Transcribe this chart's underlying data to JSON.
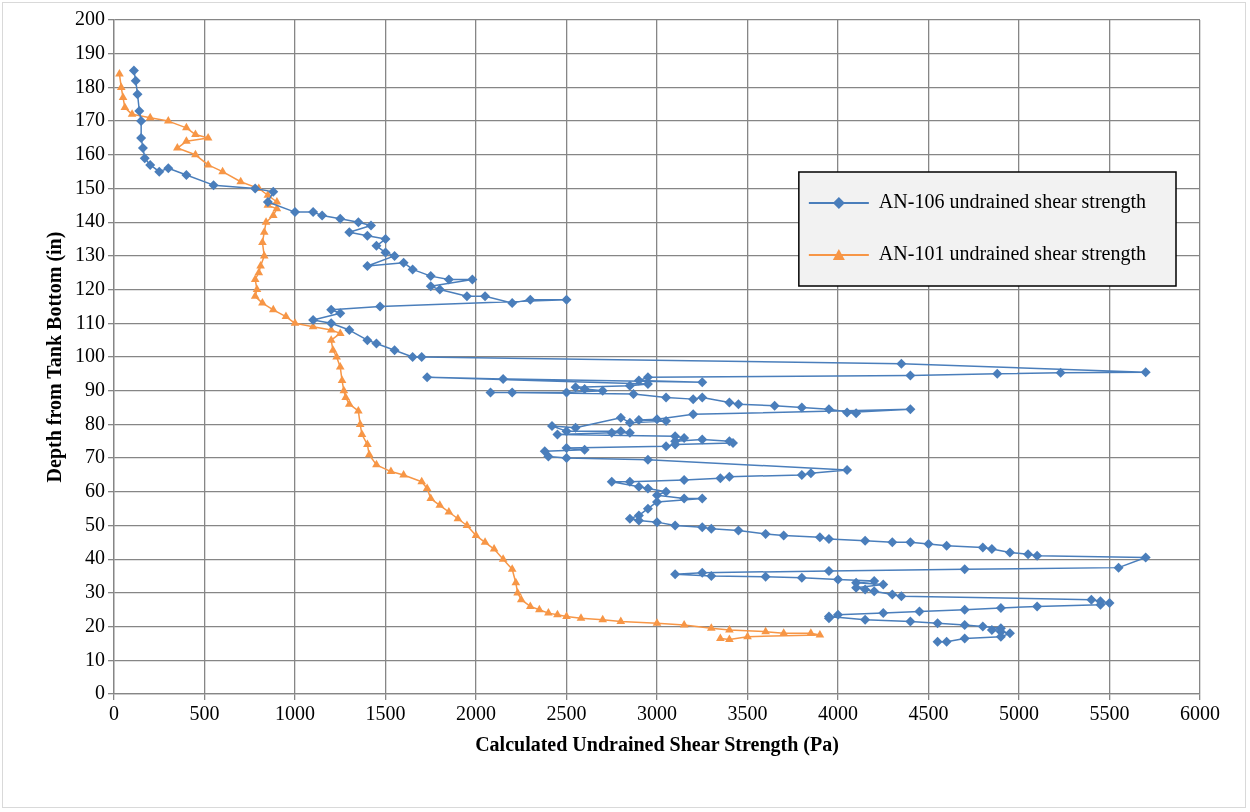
{
  "chart_data": {
    "type": "line",
    "xlabel": "Calculated Undrained Shear Strength (Pa)",
    "ylabel": "Depth from Tank Bottom (in)",
    "xlim": [
      0,
      6000
    ],
    "xticks": [
      0,
      500,
      1000,
      1500,
      2000,
      2500,
      3000,
      3500,
      4000,
      4500,
      5000,
      5500,
      6000
    ],
    "ylim": [
      0,
      200
    ],
    "yticks": [
      0,
      10,
      20,
      30,
      40,
      50,
      60,
      70,
      80,
      90,
      100,
      110,
      120,
      130,
      140,
      150,
      160,
      170,
      180,
      190,
      200
    ],
    "grid": true,
    "legend": "top right",
    "line_style": "solid",
    "series": [
      {
        "name": "AN-106 undrained shear strength",
        "color": "#4a7ebb",
        "marker": "diamond",
        "x": [
          110,
          120,
          130,
          140,
          150,
          150,
          160,
          170,
          200,
          250,
          300,
          400,
          550,
          780,
          880,
          850,
          1000,
          1100,
          1150,
          1250,
          1350,
          1420,
          1300,
          1400,
          1500,
          1450,
          1500,
          1550,
          1400,
          1600,
          1650,
          1750,
          1850,
          1980,
          1750,
          1800,
          1950,
          2050,
          2200,
          2300,
          2500,
          1470,
          1200,
          1250,
          1100,
          1200,
          1300,
          1400,
          1450,
          1550,
          1650,
          1700,
          4350,
          5700,
          5230,
          4880,
          4400,
          2950,
          2900,
          3250,
          2150,
          1730,
          2950,
          2850,
          2550,
          2600,
          2700,
          2500,
          2200,
          2080,
          2870,
          3050,
          3200,
          3250,
          3400,
          3450,
          3650,
          3800,
          3950,
          4100,
          4050,
          4400,
          3200,
          3000,
          2900,
          3050,
          2850,
          2800,
          2550,
          2420,
          2500,
          2800,
          2850,
          2750,
          2450,
          3100,
          3150,
          3100,
          3250,
          3400,
          3420,
          3100,
          3050,
          2500,
          2600,
          2380,
          2400,
          2500,
          2950,
          4050,
          3850,
          3800,
          3400,
          3350,
          3150,
          2850,
          2750,
          2900,
          2950,
          3050,
          3000,
          3150,
          3250,
          3000,
          2950,
          2900,
          2850,
          2900,
          3000,
          3100,
          3250,
          3300,
          3450,
          3600,
          3700,
          3900,
          3950,
          4150,
          4300,
          4400,
          4500,
          4600,
          4800,
          4850,
          4950,
          5050,
          5100,
          5700,
          5550,
          4700,
          3950,
          3250,
          3100,
          3300,
          3600,
          3800,
          4000,
          4200,
          4100,
          4250,
          4100,
          4150,
          4200,
          4300,
          4350,
          5400,
          5450,
          5500,
          5450,
          5100,
          4900,
          4700,
          4450,
          4250,
          4000,
          3950,
          3950,
          4150,
          4400,
          4550,
          4700,
          4800,
          4900,
          4850,
          4900,
          4950,
          4900,
          4700,
          4600,
          4550
        ],
        "values": [
          185,
          182,
          178,
          173,
          170,
          165,
          162,
          159,
          157,
          155,
          156,
          154,
          151,
          150,
          149,
          146,
          143,
          143,
          142,
          141,
          140,
          139,
          137,
          136,
          135,
          133,
          131,
          130,
          127,
          128,
          126,
          124,
          123,
          123,
          121,
          120,
          118,
          118,
          116,
          117,
          117,
          115,
          114,
          113,
          111,
          110,
          108,
          105,
          104,
          102,
          100,
          100,
          98,
          95.5,
          95.3,
          95,
          94.5,
          94,
          93,
          92.5,
          93.5,
          94,
          92,
          91.5,
          91,
          90.5,
          90,
          89.5,
          89.5,
          89.5,
          89,
          88,
          87.5,
          88,
          86.5,
          86,
          85.5,
          85,
          84.5,
          83.3,
          83.5,
          84.5,
          83,
          81.5,
          81.3,
          81,
          80.5,
          82,
          79,
          79.5,
          78,
          78,
          77.5,
          77.5,
          77,
          76.5,
          76,
          75,
          75.5,
          75,
          74.5,
          74,
          73.5,
          73,
          72.5,
          72,
          70.5,
          70,
          69.5,
          66.5,
          65.5,
          65,
          64.5,
          64,
          63.5,
          63,
          63,
          61.5,
          61,
          60,
          59,
          58,
          58,
          57,
          55,
          53,
          52,
          51.5,
          51,
          50,
          49.5,
          49,
          48.5,
          47.5,
          47,
          46.5,
          46,
          45.5,
          45,
          45,
          44.5,
          44,
          43.5,
          43,
          42,
          41.5,
          41,
          40.5,
          37.5,
          37,
          36.5,
          36,
          35.5,
          35,
          34.8,
          34.5,
          34,
          33.5,
          33,
          32.5,
          31.5,
          31,
          30.5,
          29.5,
          29,
          28,
          27.5,
          27,
          26.5,
          26,
          25.5,
          25,
          24.5,
          24,
          23.5,
          22.5,
          23,
          22,
          21.5,
          21,
          20.5,
          20,
          19.5,
          19,
          18.5,
          18,
          17,
          16.5,
          15.5,
          15.5
        ]
      },
      {
        "name": "AN-101 undrained shear strength",
        "color": "#f79646",
        "marker": "triangle",
        "x": [
          30,
          40,
          50,
          60,
          100,
          200,
          300,
          400,
          450,
          520,
          400,
          350,
          450,
          520,
          600,
          700,
          800,
          850,
          900,
          850,
          900,
          880,
          840,
          830,
          820,
          830,
          810,
          800,
          780,
          790,
          780,
          820,
          880,
          950,
          1000,
          1100,
          1200,
          1250,
          1200,
          1210,
          1230,
          1250,
          1260,
          1270,
          1280,
          1300,
          1350,
          1360,
          1370,
          1400,
          1410,
          1450,
          1530,
          1600,
          1700,
          1730,
          1750,
          1800,
          1850,
          1900,
          1950,
          2000,
          2050,
          2100,
          2150,
          2200,
          2220,
          2230,
          2250,
          2300,
          2350,
          2400,
          2450,
          2500,
          2580,
          2700,
          2800,
          3000,
          3150,
          3300,
          3400,
          3600,
          3700,
          3850,
          3900,
          3500,
          3400,
          3350
        ],
        "values": [
          184,
          180,
          177,
          174,
          172,
          171,
          170,
          168,
          166,
          165,
          164,
          162,
          160,
          157,
          155,
          152,
          150,
          148,
          146,
          145,
          144,
          142,
          140,
          137,
          134,
          130,
          127,
          125,
          123,
          120,
          118,
          116,
          114,
          112,
          110,
          109,
          108,
          107,
          105,
          102,
          100,
          97,
          93,
          90,
          88,
          86,
          84,
          80,
          77,
          74,
          71,
          68,
          66,
          65,
          63,
          61,
          58,
          56,
          54,
          52,
          50,
          47,
          45,
          43,
          40,
          37,
          33,
          30,
          28,
          26,
          25,
          24,
          23.5,
          23,
          22.5,
          22,
          21.5,
          21,
          20.5,
          19.5,
          19,
          18.5,
          18,
          18,
          17.5,
          17,
          16.2,
          16.5
        ]
      }
    ]
  }
}
